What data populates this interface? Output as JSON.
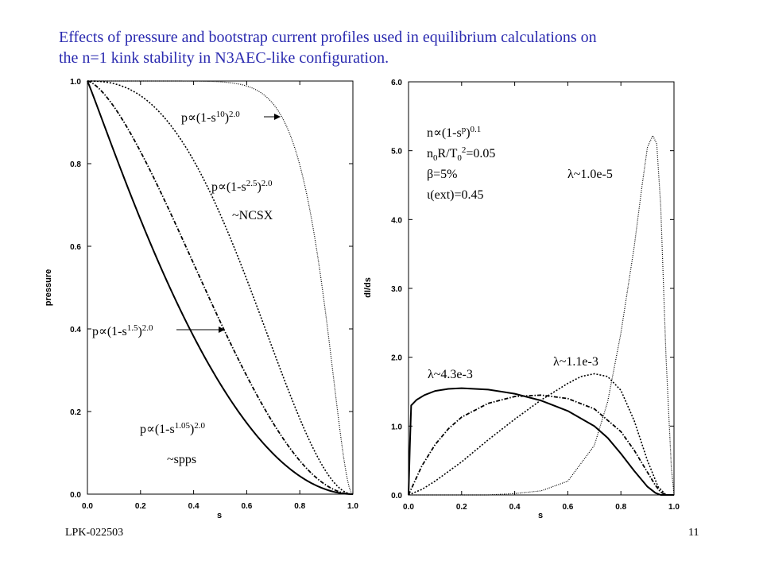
{
  "title": {
    "line1": "Effects of pressure and bootstrap current profiles used in equilibrium calculations on",
    "line2": "the n=1 kink stability in N3AEC-like configuration."
  },
  "footer": {
    "left": "LPK-022503",
    "right": "11"
  },
  "chart_data": [
    {
      "type": "line",
      "xlabel": "s",
      "ylabel": "pressure",
      "xlim": [
        0,
        1
      ],
      "ylim": [
        0,
        1
      ],
      "xticks": [
        "0.0",
        "0.2",
        "0.4",
        "0.6",
        "0.8",
        "1.0"
      ],
      "yticks": [
        "0.0",
        "0.2",
        "0.4",
        "0.6",
        "0.8",
        "1.0"
      ],
      "series": [
        {
          "name": "p∝(1-s^1.05)^2.0",
          "exponent": 1.05,
          "style": "solid"
        },
        {
          "name": "p∝(1-s^1.5)^2.0",
          "exponent": 1.5,
          "style": "dashdot"
        },
        {
          "name": "p∝(1-s^2.5)^2.0",
          "exponent": 2.5,
          "style": "dotted"
        },
        {
          "name": "p∝(1-s^10)^2.0",
          "exponent": 10,
          "style": "finedotted"
        }
      ],
      "annotations": {
        "p10": {
          "base": "p∝(1-s",
          "sup1": "10",
          "close": ")",
          "sup2": "2.0"
        },
        "p25": {
          "base": "p∝(1-s",
          "sup1": "2.5",
          "close": ")",
          "sup2": "2.0"
        },
        "ncsx": "~NCSX",
        "p15": {
          "base": "p∝(1-s",
          "sup1": "1.5",
          "close": ")",
          "sup2": "2.0"
        },
        "p105": {
          "base": "p∝(1-s",
          "sup1": "1.05",
          "close": ")",
          "sup2": "2.0"
        },
        "spps": "~spps"
      }
    },
    {
      "type": "line",
      "xlabel": "s",
      "ylabel": "dI/ds",
      "xlim": [
        0,
        1
      ],
      "ylim": [
        0,
        6
      ],
      "xticks": [
        "0.0",
        "0.2",
        "0.4",
        "0.6",
        "0.8",
        "1.0"
      ],
      "yticks": [
        "0.0",
        "1.0",
        "2.0",
        "3.0",
        "4.0",
        "5.0",
        "6.0"
      ],
      "series": [
        {
          "name": "λ~4.3e-3",
          "style": "solid",
          "points": [
            [
              0,
              0
            ],
            [
              0.005,
              0.7
            ],
            [
              0.01,
              1.3
            ],
            [
              0.03,
              1.38
            ],
            [
              0.06,
              1.45
            ],
            [
              0.1,
              1.51
            ],
            [
              0.15,
              1.54
            ],
            [
              0.2,
              1.55
            ],
            [
              0.3,
              1.53
            ],
            [
              0.4,
              1.47
            ],
            [
              0.5,
              1.37
            ],
            [
              0.6,
              1.22
            ],
            [
              0.7,
              1.0
            ],
            [
              0.75,
              0.83
            ],
            [
              0.8,
              0.6
            ],
            [
              0.85,
              0.35
            ],
            [
              0.9,
              0.12
            ],
            [
              0.93,
              0.03
            ],
            [
              0.95,
              0.0
            ],
            [
              1.0,
              0.0
            ]
          ]
        },
        {
          "name": "",
          "style": "dashdot",
          "points": [
            [
              0,
              0
            ],
            [
              0.05,
              0.42
            ],
            [
              0.1,
              0.73
            ],
            [
              0.15,
              0.96
            ],
            [
              0.2,
              1.13
            ],
            [
              0.3,
              1.33
            ],
            [
              0.4,
              1.43
            ],
            [
              0.5,
              1.45
            ],
            [
              0.6,
              1.4
            ],
            [
              0.7,
              1.25
            ],
            [
              0.8,
              0.92
            ],
            [
              0.85,
              0.65
            ],
            [
              0.9,
              0.33
            ],
            [
              0.93,
              0.14
            ],
            [
              0.95,
              0.04
            ],
            [
              0.97,
              0.0
            ],
            [
              1.0,
              0.0
            ]
          ]
        },
        {
          "name": "λ~1.1e-3",
          "style": "dotted",
          "points": [
            [
              0,
              0
            ],
            [
              0.05,
              0.08
            ],
            [
              0.1,
              0.2
            ],
            [
              0.2,
              0.48
            ],
            [
              0.3,
              0.8
            ],
            [
              0.4,
              1.1
            ],
            [
              0.5,
              1.38
            ],
            [
              0.6,
              1.62
            ],
            [
              0.65,
              1.72
            ],
            [
              0.7,
              1.76
            ],
            [
              0.75,
              1.72
            ],
            [
              0.8,
              1.52
            ],
            [
              0.85,
              1.08
            ],
            [
              0.9,
              0.5
            ],
            [
              0.94,
              0.12
            ],
            [
              0.97,
              0.0
            ],
            [
              1.0,
              0.0
            ]
          ]
        },
        {
          "name": "λ~1.0e-5",
          "style": "finedotted",
          "points": [
            [
              0,
              0
            ],
            [
              0.3,
              0.0
            ],
            [
              0.4,
              0.02
            ],
            [
              0.5,
              0.06
            ],
            [
              0.6,
              0.2
            ],
            [
              0.7,
              0.72
            ],
            [
              0.75,
              1.35
            ],
            [
              0.8,
              2.35
            ],
            [
              0.85,
              3.6
            ],
            [
              0.88,
              4.5
            ],
            [
              0.9,
              5.05
            ],
            [
              0.92,
              5.22
            ],
            [
              0.935,
              5.1
            ],
            [
              0.95,
              4.2
            ],
            [
              0.97,
              2.0
            ],
            [
              0.99,
              0.4
            ],
            [
              1.0,
              0.0
            ]
          ]
        }
      ],
      "annotations": {
        "n": {
          "base": "n∝(1-s",
          "sup1": "p",
          "close": ")",
          "sup2": "0.1"
        },
        "n0": {
          "base": "n",
          "sub1": "0",
          "mid": "R/T",
          "sub2": "0",
          "sup": "2",
          "rest": "=0.05"
        },
        "beta": "β=5%",
        "iota": "ι(ext)=0.45",
        "lam5": "λ~1.0e-5",
        "lam3b": "λ~1.1e-3",
        "lam3a": "λ~4.3e-3"
      }
    }
  ]
}
